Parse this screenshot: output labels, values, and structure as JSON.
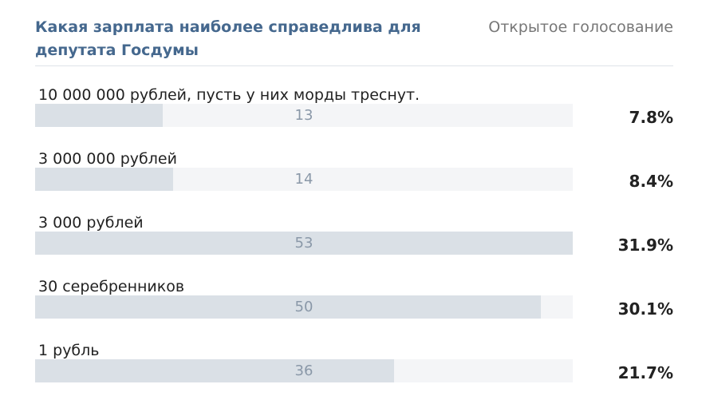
{
  "poll": {
    "title": "Какая зарплата наиболее справедлива для депутата Госдумы",
    "type_label": "Открытое голосование",
    "options": [
      {
        "label": "10 000 000 рублей, пусть у них морды треснут.",
        "votes": "13",
        "percent": "7.8%",
        "share": 0.237
      },
      {
        "label": "3 000 000 рублей",
        "votes": "14",
        "percent": "8.4%",
        "share": 0.257
      },
      {
        "label": "3 000 рублей",
        "votes": "53",
        "percent": "31.9%",
        "share": 1.0
      },
      {
        "label": "30 серебренников",
        "votes": "50",
        "percent": "30.1%",
        "share": 0.94
      },
      {
        "label": "1 рубль",
        "votes": "36",
        "percent": "21.7%",
        "share": 0.667
      }
    ]
  },
  "colors": {
    "title": "#45688e",
    "bar_fill": "#dae0e6",
    "bar_track": "#f4f5f7",
    "bar_count": "#8a98a8"
  }
}
